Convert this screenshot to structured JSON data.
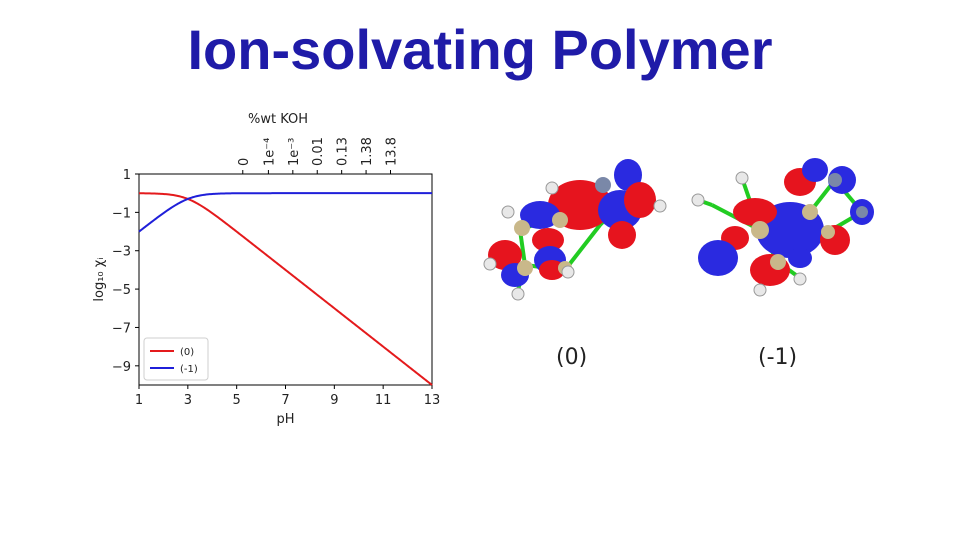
{
  "slide": {
    "title": "Ion-solvating Polymer"
  },
  "chart_data": {
    "type": "line",
    "xlabel": "pH",
    "ylabel": "log₁₀ χᵢ",
    "top_axis_label": "%wt KOH",
    "xlim": [
      1,
      13
    ],
    "ylim": [
      -10,
      1
    ],
    "x_ticks": [
      1,
      3,
      5,
      7,
      9,
      11,
      13
    ],
    "y_ticks": [
      1,
      -1,
      -3,
      -5,
      -7,
      -9
    ],
    "top_ticks": [
      {
        "ph": 5.25,
        "label": "0"
      },
      {
        "ph": 6.3,
        "label": "1e⁻⁴"
      },
      {
        "ph": 7.3,
        "label": "1e⁻³"
      },
      {
        "ph": 8.3,
        "label": "0.01"
      },
      {
        "ph": 9.3,
        "label": "0.13"
      },
      {
        "ph": 10.3,
        "label": "1.38"
      },
      {
        "ph": 11.3,
        "label": "13.8"
      }
    ],
    "pKa": 3.0,
    "series": [
      {
        "name": "(0)",
        "color": "#e41a1c"
      },
      {
        "name": "(-1)",
        "color": "#1f1fd9"
      }
    ],
    "legend_position": "lower-left",
    "grid": false
  },
  "molecules": [
    {
      "label": "(0)"
    },
    {
      "label": "(-1)"
    }
  ]
}
